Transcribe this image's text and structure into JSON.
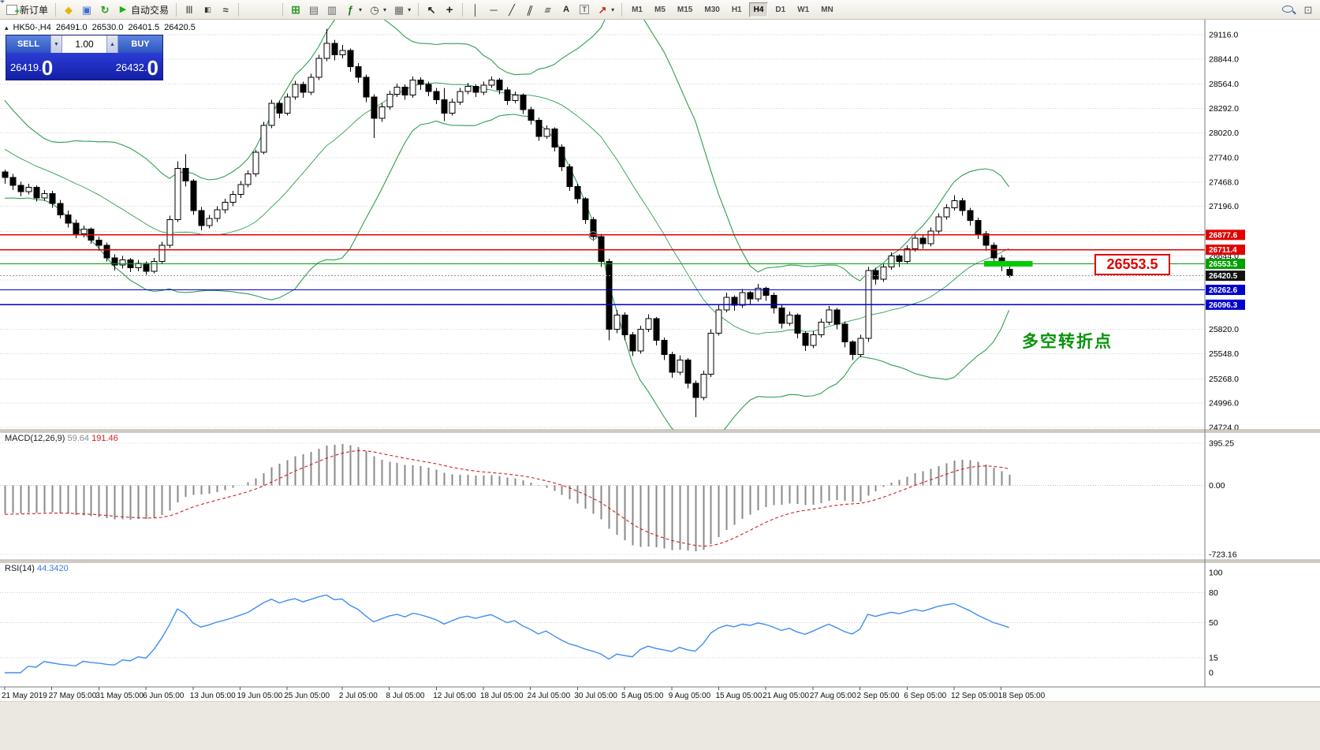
{
  "toolbar": {
    "new_order_label": "新订单",
    "autotrading_label": "自动交易",
    "items_left": [
      {
        "name": "new-order-button",
        "icon": "docplus",
        "label_key": "new_order_label"
      },
      {
        "sep": 1
      },
      {
        "name": "metaeditor-button",
        "icon": "diamond"
      },
      {
        "name": "market-watch-button",
        "icon": "person"
      },
      {
        "name": "refresh-button",
        "icon": "refresh"
      },
      {
        "name": "autotrading-button",
        "icon": "play",
        "label_key": "autotrading_label"
      },
      {
        "sep": 1
      },
      {
        "name": "bar-chart-button",
        "icon": "bars"
      },
      {
        "name": "candle-chart-button",
        "icon": "candles"
      },
      {
        "name": "line-chart-button",
        "icon": "linec"
      },
      {
        "sep": 1
      },
      {
        "name": "zoom-in-button",
        "icon": "magp"
      },
      {
        "name": "zoom-out-button",
        "icon": "magm"
      },
      {
        "sep": 1
      },
      {
        "name": "tile-windows-button",
        "icon": "gridg"
      },
      {
        "name": "new-chart-button",
        "icon": "winc"
      },
      {
        "name": "profiles-button",
        "icon": "winc2"
      },
      {
        "name": "indicators-button",
        "icon": "func",
        "caret": true
      },
      {
        "name": "periods-button",
        "icon": "clock",
        "caret": true
      },
      {
        "name": "templates-button",
        "icon": "tmpl",
        "caret": true
      },
      {
        "sep": 1
      },
      {
        "name": "cursor-button",
        "icon": "cursor"
      },
      {
        "name": "crosshair-button",
        "icon": "cross"
      },
      {
        "sep": 1
      },
      {
        "name": "vertical-line-button",
        "icon": "vline"
      },
      {
        "name": "horizontal-line-button",
        "icon": "hline"
      },
      {
        "name": "trendline-button",
        "icon": "tline"
      },
      {
        "name": "channel-button",
        "icon": "chan"
      },
      {
        "name": "fibonacci-button",
        "icon": "fibo"
      },
      {
        "name": "text-button",
        "icon": "textA"
      },
      {
        "name": "label-button",
        "icon": "textT"
      },
      {
        "name": "arrows-button",
        "icon": "arrow",
        "caret": true
      },
      {
        "sep": 1
      }
    ],
    "timeframes": [
      "M1",
      "M5",
      "M15",
      "M30",
      "H1",
      "H4",
      "D1",
      "W1",
      "MN"
    ],
    "active_timeframe": "H4",
    "items_right": [
      {
        "name": "search-button",
        "icon": "mag"
      },
      {
        "name": "new-window-button",
        "icon": "newwin"
      }
    ]
  },
  "chart_header": {
    "symbol_period": "HK50-,H4",
    "open": "26491.0",
    "high": "26530.0",
    "low": "26401.5",
    "close": "26420.5"
  },
  "trade_panel": {
    "sell_label": "SELL",
    "buy_label": "BUY",
    "volume": "1.00",
    "sell_price_small": "26419.",
    "sell_price_big": "0",
    "buy_price_small": "26432.",
    "buy_price_big": "0"
  },
  "indicator_labels": {
    "macd": "MACD(12,26,9)",
    "macd_value": "59.64",
    "macd_signal": "191.46",
    "rsi": "RSI(14)",
    "rsi_value": "44.3420"
  },
  "annotations": {
    "callout_price": "26553.5",
    "turning_point": "多空转折点"
  },
  "chart_data": {
    "type": "candlestick",
    "symbol": "HK50-",
    "period": "H4",
    "y_ticks": [
      29116,
      28844,
      28564,
      28292,
      28020,
      27740,
      27468,
      27196,
      26644,
      25820,
      25548,
      25268,
      24996,
      24724
    ],
    "y_grid_extra": [
      26916,
      26372,
      26092
    ],
    "h_lines": [
      {
        "price": 26877.6,
        "color": "#e00000",
        "width": 1.4
      },
      {
        "price": 26711.4,
        "color": "#e00000",
        "width": 1.4
      },
      {
        "price": 26553.5,
        "color": "#00a000",
        "width": 1.2
      },
      {
        "price": 26262.6,
        "color": "#0000cc",
        "width": 1.3
      },
      {
        "price": 26096.3,
        "color": "#0000cc",
        "width": 1.3
      }
    ],
    "highlight_segment": {
      "price": 26553.5,
      "from_idx": 124.8,
      "to_idx": 131.0,
      "color": "#00cc00"
    },
    "bid": {
      "price": 26420.5,
      "color": "#111111"
    },
    "marker": {
      "idx": 75,
      "price": 26870
    },
    "bollinger": {
      "period": 20,
      "deviation": 2,
      "color": "#2e9e50"
    },
    "macd": {
      "fast": 12,
      "slow": 26,
      "signal": 9,
      "axis_labels": [
        "395.25",
        "0.00",
        "-723.16"
      ],
      "hist_color": "#8a8a8a",
      "signal_color": "#d02020"
    },
    "rsi": {
      "period": 14,
      "levels": [
        80,
        50,
        15
      ],
      "axis_labels": [
        "100",
        "80",
        "50",
        "15",
        "0"
      ],
      "axis_values": [
        100,
        80,
        50,
        15,
        0
      ],
      "color": "#3f8ef0"
    },
    "x_labels": [
      [
        0,
        "21 May 2019"
      ],
      [
        6,
        "27 May 05:00"
      ],
      [
        12,
        "31 May 05:00"
      ],
      [
        18,
        "6 Jun 05:00"
      ],
      [
        24,
        "13 Jun 05:00"
      ],
      [
        30,
        "19 Jun 05:00"
      ],
      [
        36,
        "25 Jun 05:00"
      ],
      [
        43,
        "2 Jul 05:00"
      ],
      [
        49,
        "8 Jul 05:00"
      ],
      [
        55,
        "12 Jul 05:00"
      ],
      [
        61,
        "18 Jul 05:00"
      ],
      [
        67,
        "24 Jul 05:00"
      ],
      [
        73,
        "30 Jul 05:00"
      ],
      [
        79,
        "5 Aug 05:00"
      ],
      [
        85,
        "9 Aug 05:00"
      ],
      [
        91,
        "15 Aug 05:00"
      ],
      [
        97,
        "21 Aug 05:00"
      ],
      [
        103,
        "27 Aug 05:00"
      ],
      [
        109,
        "2 Sep 05:00"
      ],
      [
        115,
        "6 Sep 05:00"
      ],
      [
        121,
        "12 Sep 05:00"
      ],
      [
        127,
        "18 Sep 05:00"
      ]
    ],
    "warmup_closes": [
      29100,
      29020,
      28940,
      28860,
      28760,
      28660,
      28560,
      28460,
      28360,
      28260,
      28160,
      28060,
      27960,
      27870,
      27800,
      27760,
      27720,
      27700,
      27680,
      27660,
      27650,
      27640,
      27630,
      27620,
      27600,
      27580
    ],
    "candles": [
      [
        27580,
        27610,
        27450,
        27520
      ],
      [
        27520,
        27560,
        27380,
        27430
      ],
      [
        27430,
        27470,
        27310,
        27360
      ],
      [
        27360,
        27450,
        27330,
        27410
      ],
      [
        27410,
        27430,
        27250,
        27290
      ],
      [
        27290,
        27380,
        27260,
        27340
      ],
      [
        27340,
        27370,
        27180,
        27230
      ],
      [
        27230,
        27270,
        27060,
        27100
      ],
      [
        27100,
        27150,
        26960,
        27010
      ],
      [
        27010,
        27050,
        26840,
        26890
      ],
      [
        26890,
        26980,
        26850,
        26940
      ],
      [
        26940,
        26960,
        26780,
        26820
      ],
      [
        26820,
        26860,
        26700,
        26760
      ],
      [
        26760,
        26790,
        26580,
        26620
      ],
      [
        26620,
        26660,
        26480,
        26540
      ],
      [
        26540,
        26640,
        26500,
        26600
      ],
      [
        26600,
        26620,
        26460,
        26510
      ],
      [
        26510,
        26600,
        26470,
        26560
      ],
      [
        26560,
        26580,
        26430,
        26470
      ],
      [
        26470,
        26620,
        26450,
        26580
      ],
      [
        26580,
        26800,
        26560,
        26760
      ],
      [
        26760,
        27090,
        26730,
        27050
      ],
      [
        27050,
        27700,
        27020,
        27620
      ],
      [
        27620,
        27780,
        27420,
        27480
      ],
      [
        27480,
        27500,
        27100,
        27150
      ],
      [
        27150,
        27190,
        26930,
        26980
      ],
      [
        26980,
        27100,
        26950,
        27060
      ],
      [
        27060,
        27200,
        27020,
        27160
      ],
      [
        27160,
        27280,
        27120,
        27240
      ],
      [
        27240,
        27370,
        27200,
        27330
      ],
      [
        27330,
        27480,
        27290,
        27440
      ],
      [
        27440,
        27600,
        27410,
        27560
      ],
      [
        27560,
        27830,
        27530,
        27800
      ],
      [
        27800,
        28140,
        27780,
        28100
      ],
      [
        28100,
        28390,
        28070,
        28350
      ],
      [
        28350,
        28380,
        28180,
        28240
      ],
      [
        28240,
        28460,
        28210,
        28420
      ],
      [
        28420,
        28600,
        28390,
        28560
      ],
      [
        28560,
        28590,
        28410,
        28470
      ],
      [
        28470,
        28680,
        28440,
        28640
      ],
      [
        28640,
        28890,
        28610,
        28850
      ],
      [
        28850,
        29180,
        28820,
        29020
      ],
      [
        29020,
        29060,
        28830,
        28890
      ],
      [
        28890,
        29000,
        28850,
        28940
      ],
      [
        28940,
        28960,
        28700,
        28760
      ],
      [
        28760,
        28800,
        28580,
        28640
      ],
      [
        28640,
        28670,
        28360,
        28420
      ],
      [
        28420,
        28450,
        27960,
        28180
      ],
      [
        28180,
        28350,
        28140,
        28310
      ],
      [
        28310,
        28490,
        28280,
        28450
      ],
      [
        28450,
        28570,
        28420,
        28530
      ],
      [
        28530,
        28560,
        28390,
        28440
      ],
      [
        28440,
        28650,
        28410,
        28610
      ],
      [
        28610,
        28640,
        28500,
        28560
      ],
      [
        28560,
        28590,
        28430,
        28480
      ],
      [
        28480,
        28520,
        28340,
        28390
      ],
      [
        28390,
        28520,
        28150,
        28240
      ],
      [
        28240,
        28400,
        28210,
        28360
      ],
      [
        28360,
        28520,
        28330,
        28480
      ],
      [
        28480,
        28580,
        28450,
        28540
      ],
      [
        28540,
        28560,
        28420,
        28470
      ],
      [
        28470,
        28590,
        28440,
        28550
      ],
      [
        28550,
        28650,
        28520,
        28610
      ],
      [
        28610,
        28630,
        28450,
        28500
      ],
      [
        28500,
        28530,
        28330,
        28380
      ],
      [
        28380,
        28480,
        28350,
        28440
      ],
      [
        28440,
        28460,
        28230,
        28280
      ],
      [
        28280,
        28310,
        28110,
        28160
      ],
      [
        28160,
        28190,
        27930,
        27980
      ],
      [
        27980,
        28100,
        27950,
        28060
      ],
      [
        28060,
        28080,
        27810,
        27860
      ],
      [
        27860,
        27890,
        27590,
        27640
      ],
      [
        27640,
        27670,
        27370,
        27420
      ],
      [
        27420,
        27450,
        27230,
        27280
      ],
      [
        27280,
        27300,
        27000,
        27050
      ],
      [
        27050,
        27080,
        26810,
        26860
      ],
      [
        26860,
        26890,
        26520,
        26580
      ],
      [
        26580,
        26610,
        25700,
        25820
      ],
      [
        25820,
        26040,
        25780,
        25980
      ],
      [
        25980,
        26010,
        25700,
        25760
      ],
      [
        25760,
        25790,
        25520,
        25580
      ],
      [
        25580,
        25860,
        25550,
        25820
      ],
      [
        25820,
        25990,
        25790,
        25940
      ],
      [
        25940,
        25960,
        25640,
        25700
      ],
      [
        25700,
        25730,
        25480,
        25540
      ],
      [
        25540,
        25570,
        25280,
        25340
      ],
      [
        25340,
        25530,
        25310,
        25480
      ],
      [
        25480,
        25500,
        25160,
        25220
      ],
      [
        25220,
        25250,
        24840,
        25060
      ],
      [
        25060,
        25360,
        25030,
        25320
      ],
      [
        25320,
        25820,
        25290,
        25780
      ],
      [
        25780,
        26090,
        25750,
        26040
      ],
      [
        26040,
        26230,
        26010,
        26180
      ],
      [
        26180,
        26200,
        26030,
        26090
      ],
      [
        26090,
        26270,
        26060,
        26230
      ],
      [
        26230,
        26250,
        26100,
        26160
      ],
      [
        26160,
        26330,
        26130,
        26280
      ],
      [
        26280,
        26300,
        26140,
        26200
      ],
      [
        26200,
        26230,
        26000,
        26060
      ],
      [
        26060,
        26090,
        25830,
        25890
      ],
      [
        25890,
        26020,
        25860,
        25980
      ],
      [
        25980,
        26000,
        25720,
        25780
      ],
      [
        25780,
        25800,
        25580,
        25640
      ],
      [
        25640,
        25800,
        25610,
        25760
      ],
      [
        25760,
        25940,
        25730,
        25900
      ],
      [
        25900,
        26080,
        25870,
        26040
      ],
      [
        26040,
        26060,
        25820,
        25880
      ],
      [
        25880,
        25910,
        25620,
        25680
      ],
      [
        25680,
        25700,
        25480,
        25540
      ],
      [
        25540,
        25760,
        25510,
        25720
      ],
      [
        25720,
        26520,
        25680,
        26480
      ],
      [
        26480,
        26510,
        26320,
        26380
      ],
      [
        26380,
        26560,
        26350,
        26520
      ],
      [
        26520,
        26680,
        26490,
        26640
      ],
      [
        26640,
        26660,
        26520,
        26580
      ],
      [
        26580,
        26760,
        26550,
        26720
      ],
      [
        26720,
        26880,
        26690,
        26840
      ],
      [
        26840,
        26870,
        26720,
        26780
      ],
      [
        26780,
        26960,
        26750,
        26920
      ],
      [
        26920,
        27120,
        26890,
        27080
      ],
      [
        27080,
        27220,
        27050,
        27180
      ],
      [
        27180,
        27320,
        27150,
        27260
      ],
      [
        27260,
        27290,
        27090,
        27150
      ],
      [
        27150,
        27180,
        26980,
        27040
      ],
      [
        27040,
        27070,
        26830,
        26890
      ],
      [
        26890,
        26920,
        26700,
        26760
      ],
      [
        26760,
        26790,
        26560,
        26620
      ],
      [
        26620,
        26650,
        26470,
        26530
      ],
      [
        26491,
        26530,
        26401.5,
        26420.5
      ]
    ]
  }
}
